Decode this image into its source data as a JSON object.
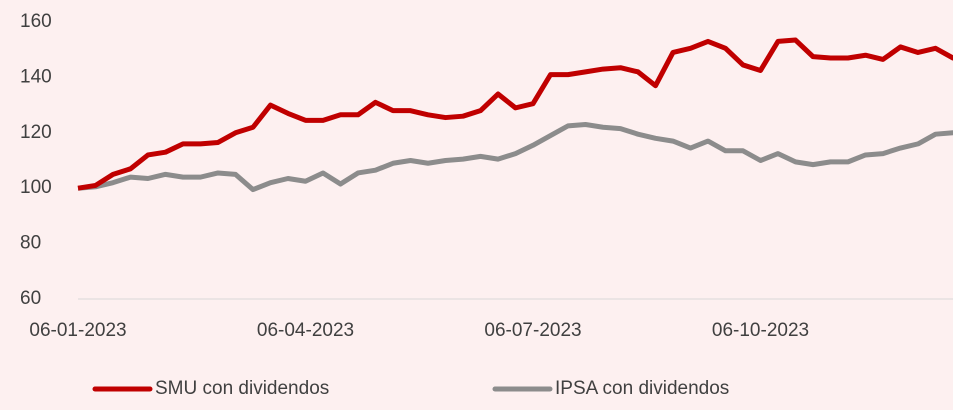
{
  "chart_data": {
    "type": "line",
    "categories": [
      "06-01-2023",
      null,
      null,
      null,
      null,
      null,
      null,
      null,
      null,
      null,
      null,
      null,
      null,
      "06-04-2023",
      null,
      null,
      null,
      null,
      null,
      null,
      null,
      null,
      null,
      null,
      null,
      null,
      "06-07-2023",
      null,
      null,
      null,
      null,
      null,
      null,
      null,
      null,
      null,
      null,
      null,
      null,
      "06-10-2023",
      null,
      null,
      null,
      null,
      null,
      null,
      null,
      null,
      null,
      null,
      null,
      null
    ],
    "series": [
      {
        "name": "SMU con dividendos",
        "color": "#c00000",
        "values": [
          100,
          101,
          105,
          107,
          112,
          113,
          116,
          116,
          116.5,
          120,
          122,
          130,
          127,
          124.5,
          124.5,
          126.5,
          126.5,
          131,
          128,
          128,
          126.5,
          125.5,
          126,
          128,
          134,
          129,
          130.5,
          141,
          141,
          142,
          143,
          143.5,
          142,
          137,
          149,
          150.5,
          153,
          150.5,
          144.5,
          142.5,
          153,
          153.5,
          147.5,
          147,
          147,
          148,
          146.5,
          151,
          149,
          150.5,
          147,
          151
        ]
      },
      {
        "name": "IPSA con dividendos",
        "color": "#8c8c8c",
        "values": [
          100,
          100.5,
          102,
          104,
          103.5,
          105,
          104,
          104,
          105.5,
          105,
          99.5,
          102,
          103.5,
          102.5,
          105.5,
          101.5,
          105.5,
          106.5,
          109,
          110,
          109,
          110,
          110.5,
          111.5,
          110.5,
          112.5,
          115.5,
          119,
          122.5,
          123,
          122,
          121.5,
          119.5,
          118,
          117,
          114.5,
          117,
          113.5,
          113.5,
          110,
          112.5,
          109.5,
          108.5,
          109.5,
          109.5,
          112,
          112.5,
          114.5,
          116,
          119.5,
          120,
          120.5
        ]
      }
    ],
    "ylim": [
      60,
      160
    ],
    "yticks": [
      60,
      80,
      100,
      120,
      140,
      160
    ],
    "grid": false
  }
}
